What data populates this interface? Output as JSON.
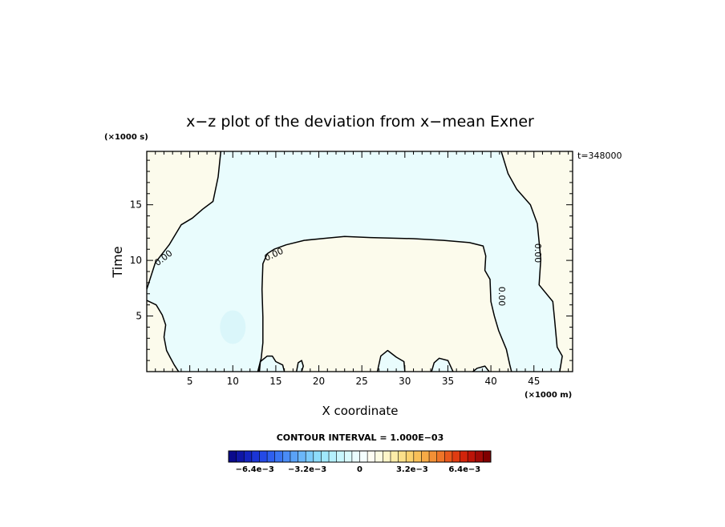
{
  "chart_data": {
    "type": "contour",
    "title": "x−z plot of the deviation from x−mean Exner",
    "xlabel": "X coordinate",
    "ylabel": "Time",
    "x_unit_label": "(×1000 m)",
    "y_unit_label": "(×1000 s)",
    "time_stamp": "t=348000",
    "xlim": [
      0,
      49.5
    ],
    "ylim": [
      0,
      19.8
    ],
    "x_ticks": [
      5,
      10,
      15,
      20,
      25,
      30,
      35,
      40,
      45
    ],
    "y_ticks": [
      5,
      10,
      15
    ],
    "contour_level_label": "0.00",
    "contour_interval_label": "CONTOUR INTERVAL = 1.000E−03",
    "colorbar": {
      "min": -0.008,
      "max": 0.008,
      "tick_values": [
        -0.0064,
        -0.0032,
        0,
        0.0032,
        0.0064
      ],
      "tick_labels": [
        "−6.4e−3",
        "−3.2e−3",
        "0",
        "3.2e−3",
        "6.4e−3"
      ],
      "colors": [
        "#0a0a8c",
        "#0f16a6",
        "#1424bf",
        "#1b35d6",
        "#2449e6",
        "#2e5fee",
        "#3a75f2",
        "#4a8cf5",
        "#5aa2f7",
        "#6bb7f9",
        "#7ccbfa",
        "#8ddcfb",
        "#a0e8fc",
        "#b4f0fd",
        "#c8f6fd",
        "#dafafd",
        "#e9fcfd",
        "#f4fefe",
        "#fefdf2",
        "#fdfbe2",
        "#fdf5c8",
        "#fceca8",
        "#fbe08a",
        "#fad26e",
        "#f8c058",
        "#f6aa46",
        "#f39036",
        "#ef7528",
        "#e9581c",
        "#e03c12",
        "#d2240b",
        "#bc1408",
        "#a00a06",
        "#800000"
      ]
    },
    "fields": {
      "negative_region_color": "#e9fcfd",
      "positive_region_color": "#fcfbec",
      "blob_color": "#daf6fa",
      "blob_center": [
        10,
        4
      ],
      "zero_contours": [
        {
          "name": "left-contour",
          "points": [
            [
              8.6,
              19.8
            ],
            [
              8.3,
              17.5
            ],
            [
              7.7,
              15.3
            ],
            [
              6.5,
              14.6
            ],
            [
              5.3,
              13.8
            ],
            [
              4.0,
              13.2
            ],
            [
              2.6,
              11.4
            ],
            [
              1.0,
              9.8
            ],
            [
              0,
              7.4
            ]
          ]
        },
        {
          "name": "left-bottom-contour",
          "points": [
            [
              0,
              6.4
            ],
            [
              1.1,
              6.0
            ],
            [
              1.8,
              5.1
            ],
            [
              2.2,
              4.2
            ],
            [
              2.0,
              3.1
            ],
            [
              2.3,
              1.9
            ],
            [
              2.7,
              1.3
            ],
            [
              3.2,
              0.6
            ],
            [
              3.7,
              0
            ]
          ]
        },
        {
          "name": "dome-contour",
          "points": [
            [
              12.9,
              0
            ],
            [
              13.3,
              1.2
            ],
            [
              13.5,
              2.6
            ],
            [
              13.5,
              4.9
            ],
            [
              13.4,
              7.4
            ],
            [
              13.5,
              9.7
            ],
            [
              14.0,
              10.6
            ],
            [
              14.8,
              11.0
            ],
            [
              16.2,
              11.4
            ],
            [
              18.3,
              11.8
            ],
            [
              21.0,
              12.0
            ],
            [
              23.0,
              12.15
            ],
            [
              26.0,
              12.05
            ],
            [
              31.0,
              11.95
            ],
            [
              34.5,
              11.8
            ],
            [
              37.5,
              11.6
            ],
            [
              39.1,
              11.3
            ],
            [
              39.4,
              10.4
            ],
            [
              39.3,
              9.1
            ],
            [
              39.9,
              8.3
            ],
            [
              40.0,
              6.3
            ],
            [
              40.4,
              5.0
            ],
            [
              40.9,
              3.7
            ],
            [
              41.8,
              2.0
            ],
            [
              42.2,
              0.6
            ],
            [
              42.4,
              0
            ]
          ]
        },
        {
          "name": "right-contour",
          "points": [
            [
              41.2,
              19.8
            ],
            [
              42.0,
              17.8
            ],
            [
              43.0,
              16.4
            ],
            [
              44.6,
              15.0
            ],
            [
              45.4,
              13.3
            ],
            [
              45.8,
              10.1
            ],
            [
              45.6,
              7.8
            ],
            [
              47.2,
              6.3
            ],
            [
              47.4,
              4.7
            ],
            [
              47.7,
              2.2
            ],
            [
              48.3,
              1.4
            ],
            [
              48.0,
              0
            ]
          ]
        },
        {
          "name": "bump-15",
          "points": [
            [
              13.1,
              0
            ],
            [
              13.2,
              0.9
            ],
            [
              14.0,
              1.4
            ],
            [
              14.6,
              1.4
            ],
            [
              15.0,
              0.9
            ],
            [
              15.8,
              0.6
            ],
            [
              16.0,
              0
            ]
          ]
        },
        {
          "name": "bump-18",
          "points": [
            [
              17.4,
              0
            ],
            [
              17.6,
              0.8
            ],
            [
              18.0,
              1.0
            ],
            [
              18.2,
              0.5
            ],
            [
              18.0,
              0
            ]
          ]
        },
        {
          "name": "bump-28",
          "points": [
            [
              26.8,
              0
            ],
            [
              27.2,
              1.4
            ],
            [
              28.0,
              1.9
            ],
            [
              29.0,
              1.3
            ],
            [
              29.9,
              0.9
            ],
            [
              30.0,
              0
            ]
          ]
        },
        {
          "name": "bump-33",
          "points": [
            [
              33.1,
              0
            ],
            [
              33.4,
              0.8
            ],
            [
              34.0,
              1.2
            ],
            [
              35.0,
              1.0
            ],
            [
              35.6,
              0
            ]
          ]
        },
        {
          "name": "bump-38",
          "points": [
            [
              37.9,
              0
            ],
            [
              38.4,
              0.3
            ],
            [
              39.3,
              0.5
            ],
            [
              39.8,
              0
            ]
          ]
        }
      ]
    }
  }
}
